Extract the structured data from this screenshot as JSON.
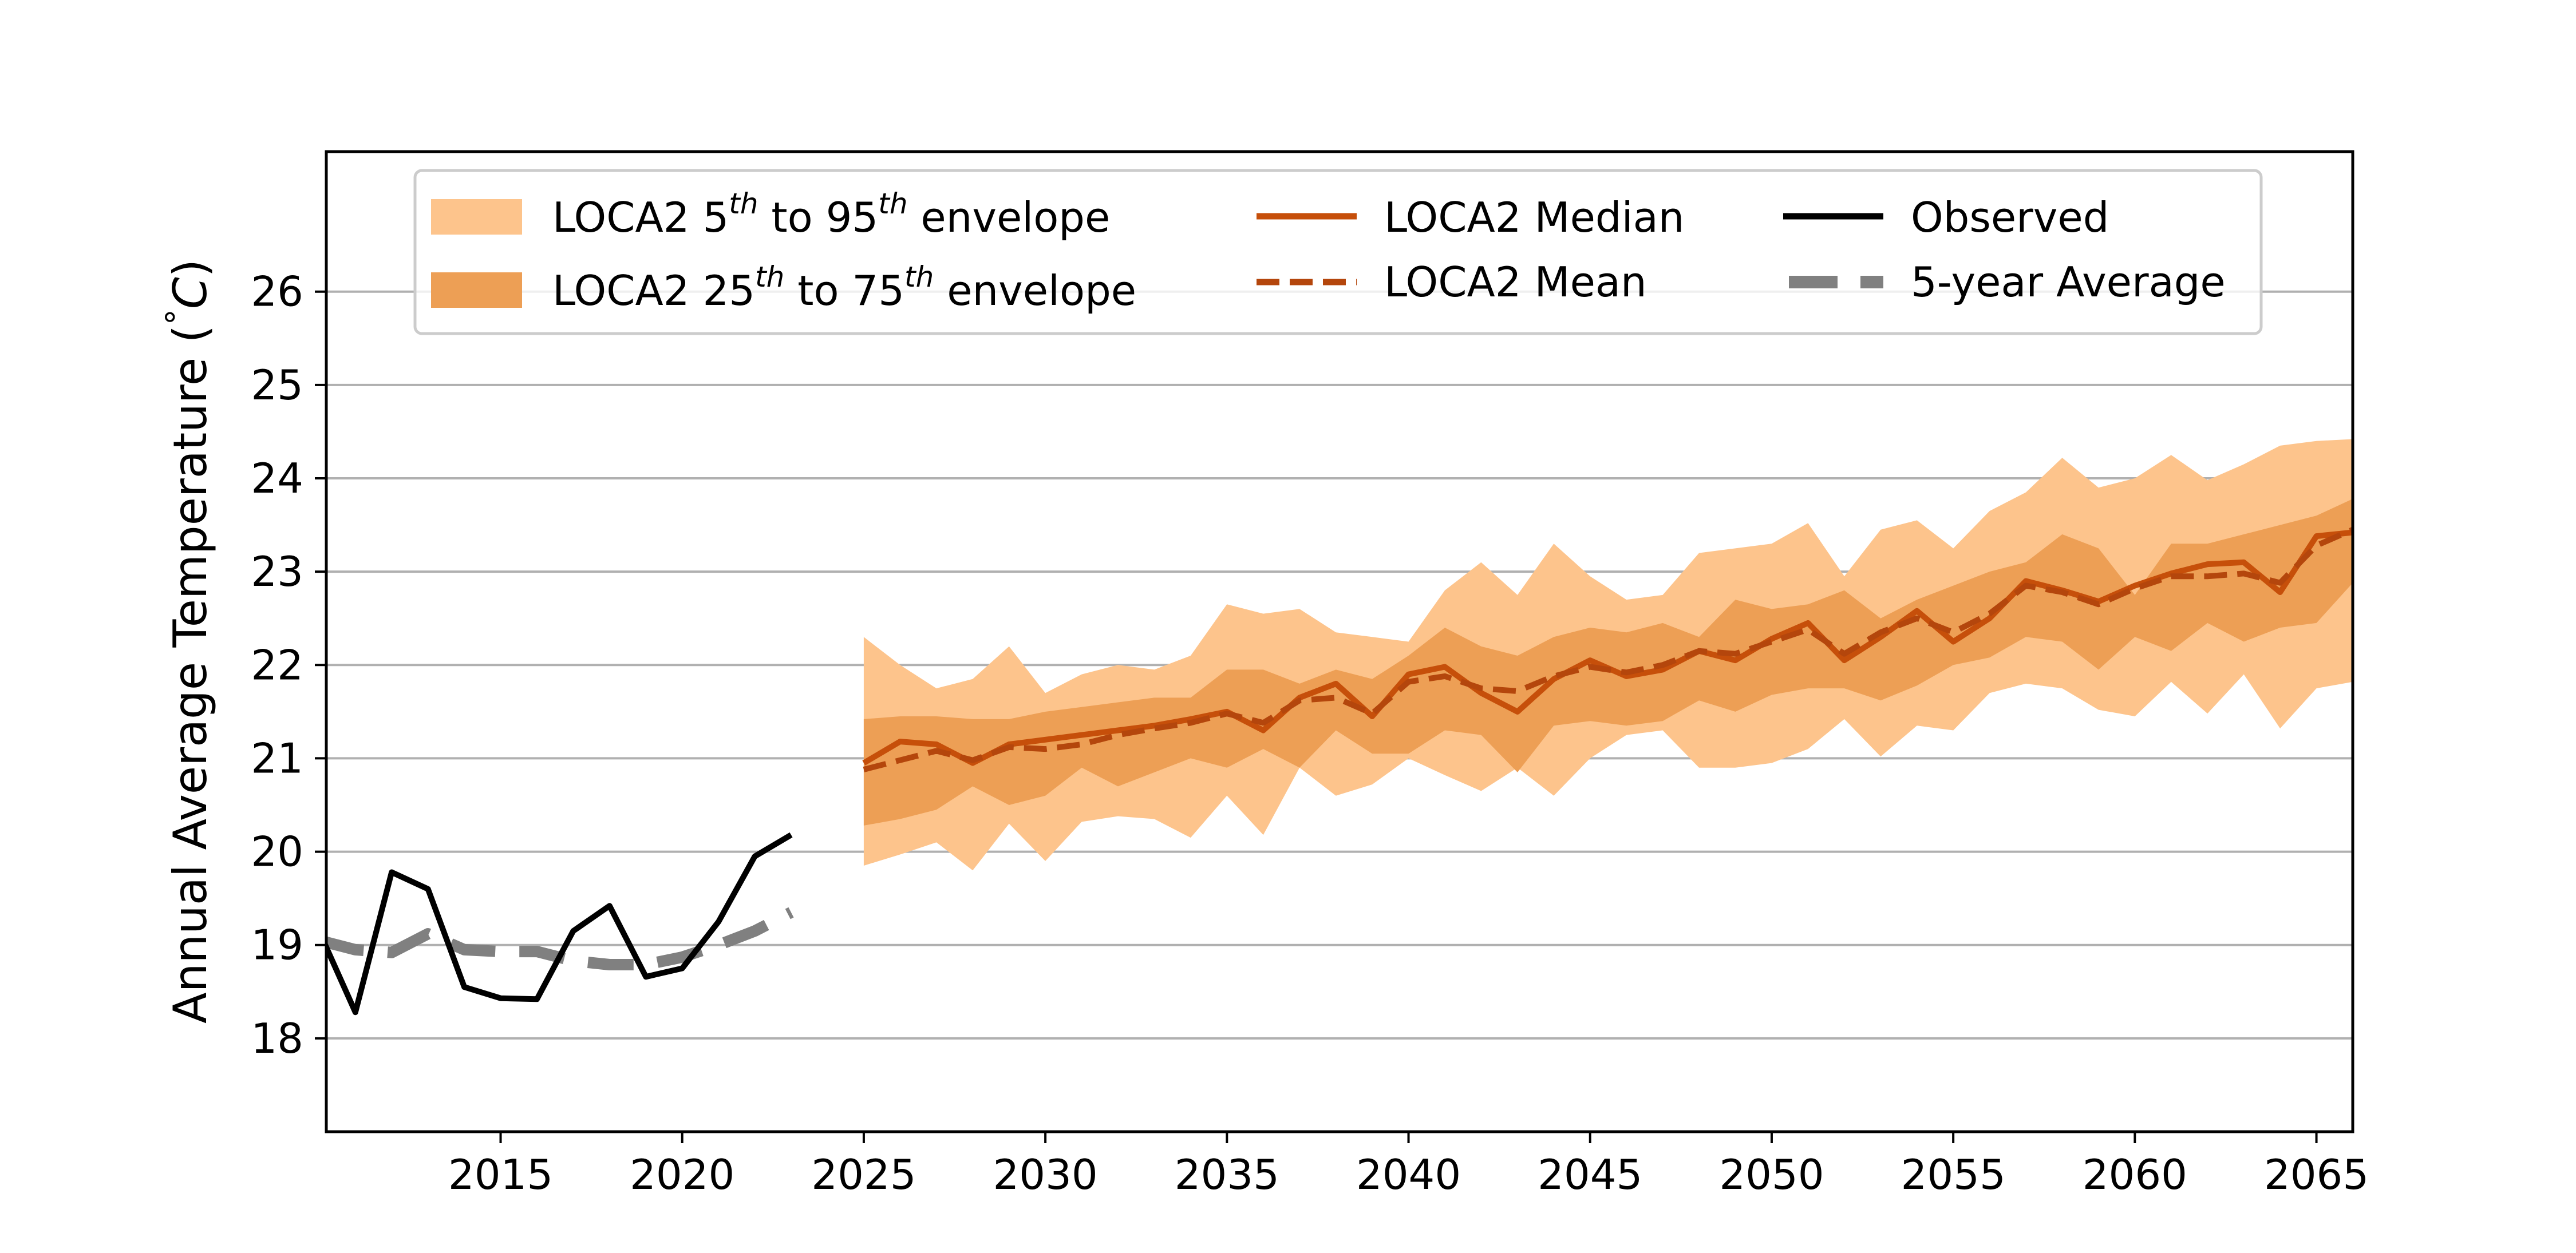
{
  "colors": {
    "envelope_5_95": "#fdc48c",
    "envelope_25_75": "#ed9f55",
    "median": "#c64f0a",
    "mean": "#b4460c",
    "observed": "#000000",
    "five_year": "#808080",
    "grid": "#b0b0b0"
  },
  "chart_data": {
    "type": "line",
    "title": "",
    "ylabel": "Annual Average Temperature (°C)",
    "ylabel_parts": {
      "main": "Annual Average Temperature (",
      "deg": "°",
      "unit": "C",
      "close": ")"
    },
    "xlabel": "",
    "xlim": [
      2010.2,
      2066.0
    ],
    "ylim": [
      17.0,
      27.5
    ],
    "grid": "horizontal",
    "xticks": [
      2015,
      2020,
      2025,
      2030,
      2035,
      2040,
      2045,
      2050,
      2055,
      2060,
      2065
    ],
    "yticks": [
      18,
      19,
      20,
      21,
      22,
      23,
      24,
      25,
      26
    ],
    "legend_position": "top",
    "legend": {
      "env595": {
        "pre": "LOCA2 5",
        "sup1": "th",
        "mid": " to 95",
        "sup2": "th",
        "post": " envelope"
      },
      "env2575": {
        "pre": "LOCA2 25",
        "sup1": "th",
        "mid": " to 75",
        "sup2": "th",
        "post": " envelope"
      },
      "median": "LOCA2 Median",
      "mean": "LOCA2 Mean",
      "observed": "Observed",
      "avg5": "5-year Average"
    },
    "observed": {
      "x": [
        2010,
        2011,
        2012,
        2013,
        2014,
        2015,
        2016,
        2017,
        2018,
        2019,
        2020,
        2021,
        2022,
        2023
      ],
      "y": [
        19.15,
        18.28,
        19.78,
        19.6,
        18.55,
        18.43,
        18.42,
        19.15,
        19.42,
        18.66,
        18.75,
        19.25,
        19.95,
        20.18
      ]
    },
    "five_year_average": {
      "x": [
        2010,
        2011,
        2012,
        2013,
        2014,
        2015,
        2016,
        2017,
        2018,
        2019,
        2020,
        2021,
        2022,
        2023
      ],
      "y": [
        19.05,
        18.95,
        18.92,
        19.12,
        18.95,
        18.93,
        18.93,
        18.83,
        18.79,
        18.79,
        18.87,
        19.0,
        19.15,
        19.35
      ]
    },
    "projection_years": [
      2025,
      2026,
      2027,
      2028,
      2029,
      2030,
      2031,
      2032,
      2033,
      2034,
      2035,
      2036,
      2037,
      2038,
      2039,
      2040,
      2041,
      2042,
      2043,
      2044,
      2045,
      2046,
      2047,
      2048,
      2049,
      2050,
      2051,
      2052,
      2053,
      2054,
      2055,
      2056,
      2057,
      2058,
      2059,
      2060,
      2061,
      2062,
      2063,
      2064,
      2065,
      2066
    ],
    "loca2_p5": [
      19.85,
      19.97,
      20.1,
      19.8,
      20.3,
      19.9,
      20.32,
      20.38,
      20.35,
      20.15,
      20.6,
      20.18,
      20.9,
      20.6,
      20.72,
      21.0,
      20.82,
      20.65,
      20.9,
      20.6,
      21.0,
      21.25,
      21.3,
      20.9,
      20.9,
      20.95,
      21.1,
      21.42,
      21.02,
      21.35,
      21.3,
      21.7,
      21.8,
      21.75,
      21.52,
      21.45,
      21.82,
      21.48,
      21.9,
      21.32,
      21.75,
      21.82
    ],
    "loca2_p25": [
      20.28,
      20.35,
      20.45,
      20.7,
      20.5,
      20.6,
      20.9,
      20.7,
      20.85,
      21.0,
      20.9,
      21.1,
      20.9,
      21.3,
      21.05,
      21.05,
      21.3,
      21.25,
      20.85,
      21.35,
      21.4,
      21.35,
      21.4,
      21.62,
      21.5,
      21.68,
      21.75,
      21.75,
      21.62,
      21.78,
      22.0,
      22.08,
      22.3,
      22.25,
      21.95,
      22.3,
      22.15,
      22.45,
      22.25,
      22.4,
      22.45,
      22.88
    ],
    "loca2_p75": [
      21.42,
      21.45,
      21.45,
      21.42,
      21.42,
      21.5,
      21.55,
      21.6,
      21.65,
      21.65,
      21.95,
      21.95,
      21.8,
      21.95,
      21.85,
      22.1,
      22.4,
      22.2,
      22.1,
      22.3,
      22.4,
      22.35,
      22.45,
      22.3,
      22.7,
      22.6,
      22.65,
      22.8,
      22.5,
      22.7,
      22.85,
      23.0,
      23.1,
      23.4,
      23.25,
      22.75,
      23.3,
      23.3,
      23.4,
      23.5,
      23.6,
      23.78
    ],
    "loca2_p95": [
      22.3,
      22.0,
      21.75,
      21.85,
      22.2,
      21.7,
      21.9,
      22.0,
      21.95,
      22.1,
      22.65,
      22.55,
      22.6,
      22.35,
      22.3,
      22.25,
      22.8,
      23.1,
      22.75,
      23.3,
      22.95,
      22.7,
      22.75,
      23.2,
      23.25,
      23.3,
      23.52,
      22.95,
      23.45,
      23.55,
      23.25,
      23.65,
      23.85,
      24.22,
      23.9,
      24.0,
      24.25,
      23.98,
      24.15,
      24.35,
      24.4,
      24.42
    ],
    "loca2_median": [
      20.95,
      21.18,
      21.15,
      20.95,
      21.15,
      21.2,
      21.25,
      21.3,
      21.35,
      21.42,
      21.5,
      21.3,
      21.65,
      21.8,
      21.45,
      21.9,
      21.98,
      21.7,
      21.5,
      21.85,
      22.05,
      21.88,
      21.95,
      22.15,
      22.05,
      22.28,
      22.45,
      22.05,
      22.3,
      22.58,
      22.25,
      22.5,
      22.9,
      22.8,
      22.68,
      22.85,
      22.98,
      23.08,
      23.1,
      22.78,
      23.38,
      23.42
    ],
    "loca2_mean": [
      20.88,
      20.98,
      21.08,
      20.98,
      21.12,
      21.1,
      21.15,
      21.25,
      21.32,
      21.38,
      21.48,
      21.38,
      21.62,
      21.65,
      21.48,
      21.82,
      21.88,
      21.75,
      21.72,
      21.88,
      21.98,
      21.92,
      22.0,
      22.15,
      22.12,
      22.25,
      22.38,
      22.12,
      22.35,
      22.5,
      22.35,
      22.55,
      22.85,
      22.78,
      22.65,
      22.82,
      22.95,
      22.95,
      22.98,
      22.88,
      23.28,
      23.45
    ]
  }
}
